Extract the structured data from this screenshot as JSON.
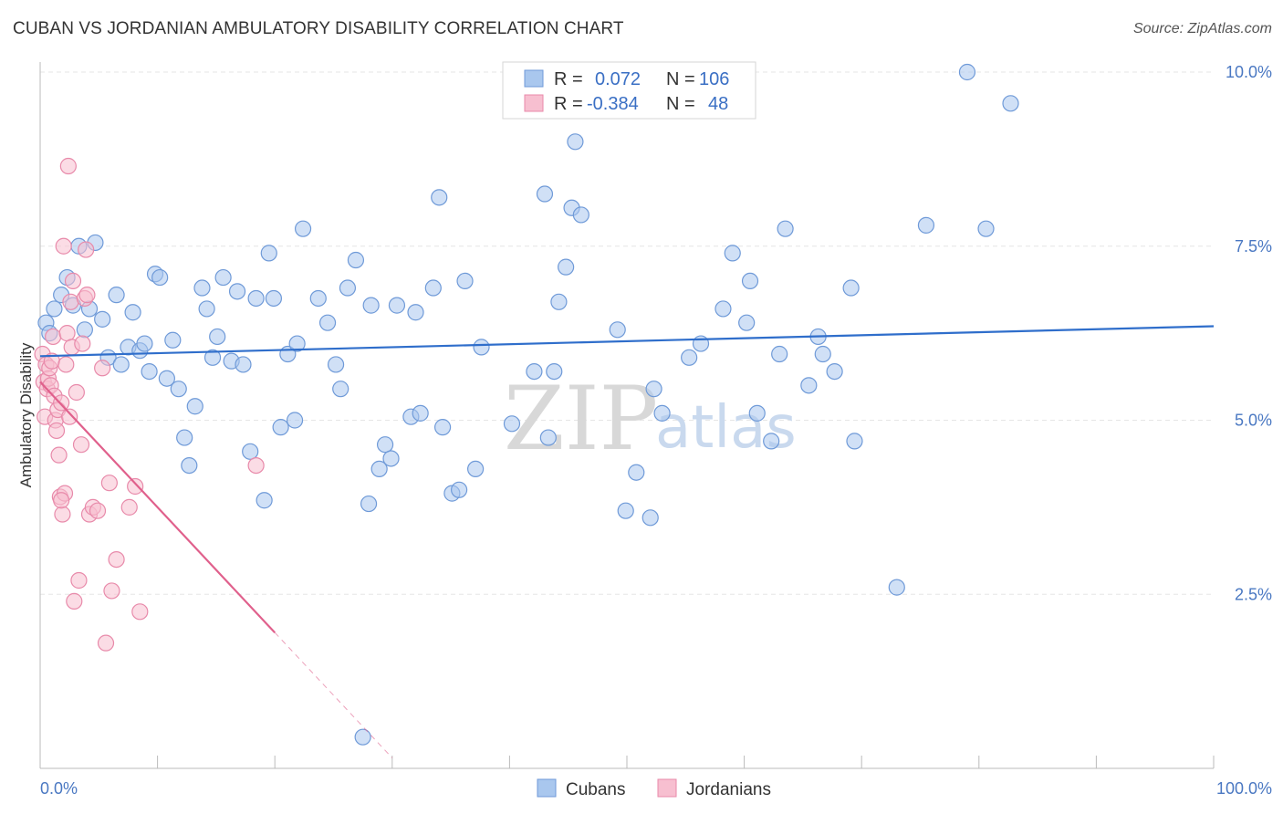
{
  "title": "CUBAN VS JORDANIAN AMBULATORY DISABILITY CORRELATION CHART",
  "source": "Source: ZipAtlas.com",
  "watermark": {
    "zip": "ZIP",
    "atlas": "atlas"
  },
  "colors": {
    "cuban_fill": "#a9c7ee",
    "cuban_stroke": "#6f9ad8",
    "cuban_line": "#2f6ecb",
    "jordan_fill": "#f7bfd0",
    "jordan_stroke": "#e88aaa",
    "jordan_line": "#e0608c",
    "grid": "#e6e6e6"
  },
  "legend": {
    "rows": [
      {
        "r_label": "R =",
        "r_value": "0.072",
        "n_label": "N =",
        "n_value": "106"
      },
      {
        "r_label": "R =",
        "r_value": "-0.384",
        "n_label": "N =",
        "n_value": "48"
      }
    ]
  },
  "chart_data": {
    "type": "scatter",
    "title": "CUBAN VS JORDANIAN AMBULATORY DISABILITY CORRELATION CHART",
    "xlabel": "",
    "ylabel": "Ambulatory Disability",
    "xlim": [
      0,
      100
    ],
    "ylim": [
      0,
      10.5
    ],
    "x_tick_labels": [
      "0.0%",
      "100.0%"
    ],
    "y_ticks": [
      2.5,
      5.0,
      7.5,
      10.0
    ],
    "y_tick_labels": [
      "2.5%",
      "5.0%",
      "7.5%",
      "10.0%"
    ],
    "legend_position": "top-center",
    "series": [
      {
        "name": "Cubans",
        "r": 0.072,
        "n": 106,
        "trend": {
          "x": [
            0,
            100
          ],
          "y": [
            5.92,
            6.35
          ]
        },
        "points": [
          [
            0.5,
            6.4
          ],
          [
            0.8,
            6.25
          ],
          [
            1.2,
            6.6
          ],
          [
            1.8,
            6.8
          ],
          [
            2.3,
            7.05
          ],
          [
            2.8,
            6.65
          ],
          [
            3.3,
            7.5
          ],
          [
            3.8,
            6.3
          ],
          [
            4.2,
            6.6
          ],
          [
            4.7,
            7.55
          ],
          [
            5.3,
            6.45
          ],
          [
            5.8,
            5.9
          ],
          [
            6.5,
            6.8
          ],
          [
            6.9,
            5.8
          ],
          [
            7.5,
            6.05
          ],
          [
            7.9,
            6.55
          ],
          [
            8.5,
            6.0
          ],
          [
            8.9,
            6.1
          ],
          [
            9.3,
            5.7
          ],
          [
            9.8,
            7.1
          ],
          [
            10.2,
            7.05
          ],
          [
            10.8,
            5.6
          ],
          [
            11.3,
            6.15
          ],
          [
            11.8,
            5.45
          ],
          [
            12.3,
            4.75
          ],
          [
            12.7,
            4.35
          ],
          [
            13.2,
            5.2
          ],
          [
            13.8,
            6.9
          ],
          [
            14.2,
            6.6
          ],
          [
            14.7,
            5.9
          ],
          [
            15.1,
            6.2
          ],
          [
            15.6,
            7.05
          ],
          [
            16.3,
            5.85
          ],
          [
            16.8,
            6.85
          ],
          [
            17.3,
            5.8
          ],
          [
            17.9,
            4.55
          ],
          [
            18.4,
            6.75
          ],
          [
            19.1,
            3.85
          ],
          [
            19.5,
            7.4
          ],
          [
            19.9,
            6.75
          ],
          [
            20.5,
            4.9
          ],
          [
            21.1,
            5.95
          ],
          [
            21.7,
            5.0
          ],
          [
            21.9,
            6.1
          ],
          [
            22.4,
            7.75
          ],
          [
            23.7,
            6.75
          ],
          [
            24.5,
            6.4
          ],
          [
            25.2,
            5.8
          ],
          [
            25.6,
            5.45
          ],
          [
            26.2,
            6.9
          ],
          [
            26.9,
            7.3
          ],
          [
            27.5,
            0.45
          ],
          [
            28.0,
            3.8
          ],
          [
            28.2,
            6.65
          ],
          [
            28.9,
            4.3
          ],
          [
            29.4,
            4.65
          ],
          [
            29.9,
            4.45
          ],
          [
            30.4,
            6.65
          ],
          [
            31.6,
            5.05
          ],
          [
            32.0,
            6.55
          ],
          [
            32.4,
            5.1
          ],
          [
            33.5,
            6.9
          ],
          [
            34.0,
            8.2
          ],
          [
            34.3,
            4.9
          ],
          [
            35.1,
            3.95
          ],
          [
            35.7,
            4.0
          ],
          [
            36.2,
            7.0
          ],
          [
            37.1,
            4.3
          ],
          [
            37.6,
            6.05
          ],
          [
            40.2,
            4.95
          ],
          [
            42.1,
            5.7
          ],
          [
            43.0,
            8.25
          ],
          [
            43.3,
            4.75
          ],
          [
            43.8,
            5.7
          ],
          [
            44.2,
            6.7
          ],
          [
            44.8,
            7.2
          ],
          [
            45.3,
            8.05
          ],
          [
            45.6,
            9.0
          ],
          [
            46.1,
            7.95
          ],
          [
            49.2,
            6.3
          ],
          [
            49.9,
            3.7
          ],
          [
            50.8,
            4.25
          ],
          [
            52.0,
            3.6
          ],
          [
            52.3,
            5.45
          ],
          [
            53.0,
            5.1
          ],
          [
            55.3,
            5.9
          ],
          [
            56.3,
            6.1
          ],
          [
            58.2,
            6.6
          ],
          [
            59.0,
            7.4
          ],
          [
            60.2,
            6.4
          ],
          [
            60.5,
            7.0
          ],
          [
            61.1,
            5.1
          ],
          [
            62.3,
            4.7
          ],
          [
            63.0,
            5.95
          ],
          [
            63.5,
            7.75
          ],
          [
            65.5,
            5.5
          ],
          [
            66.3,
            6.2
          ],
          [
            66.7,
            5.95
          ],
          [
            67.7,
            5.7
          ],
          [
            69.1,
            6.9
          ],
          [
            69.4,
            4.7
          ],
          [
            75.5,
            7.8
          ],
          [
            79.0,
            10.0
          ],
          [
            80.6,
            7.75
          ],
          [
            82.7,
            9.55
          ],
          [
            73.0,
            2.6
          ]
        ]
      },
      {
        "name": "Jordanians",
        "r": -0.384,
        "n": 48,
        "trend": {
          "x": [
            0,
            20
          ],
          "y": [
            5.55,
            1.95
          ]
        },
        "trend_dashed_extension": {
          "x": [
            20,
            30
          ],
          "y": [
            1.95,
            0.15
          ]
        },
        "points": [
          [
            0.2,
            5.95
          ],
          [
            0.3,
            5.55
          ],
          [
            0.4,
            5.05
          ],
          [
            0.5,
            5.8
          ],
          [
            0.6,
            5.45
          ],
          [
            0.7,
            5.6
          ],
          [
            0.8,
            5.75
          ],
          [
            0.9,
            5.5
          ],
          [
            1.0,
            5.85
          ],
          [
            1.1,
            6.2
          ],
          [
            1.2,
            5.35
          ],
          [
            1.3,
            5.0
          ],
          [
            1.4,
            4.85
          ],
          [
            1.5,
            5.15
          ],
          [
            1.6,
            4.5
          ],
          [
            1.7,
            3.9
          ],
          [
            1.8,
            5.25
          ],
          [
            1.9,
            3.65
          ],
          [
            2.0,
            7.5
          ],
          [
            2.1,
            3.95
          ],
          [
            2.2,
            5.8
          ],
          [
            2.3,
            6.25
          ],
          [
            2.4,
            8.65
          ],
          [
            2.5,
            5.05
          ],
          [
            2.6,
            6.7
          ],
          [
            2.7,
            6.05
          ],
          [
            2.8,
            7.0
          ],
          [
            2.9,
            2.4
          ],
          [
            3.1,
            5.4
          ],
          [
            3.3,
            2.7
          ],
          [
            3.5,
            4.65
          ],
          [
            3.6,
            6.1
          ],
          [
            3.8,
            6.75
          ],
          [
            4.0,
            6.8
          ],
          [
            4.2,
            3.65
          ],
          [
            4.5,
            3.75
          ],
          [
            4.9,
            3.7
          ],
          [
            5.3,
            5.75
          ],
          [
            5.6,
            1.8
          ],
          [
            5.9,
            4.1
          ],
          [
            6.1,
            2.55
          ],
          [
            6.5,
            3.0
          ],
          [
            7.6,
            3.75
          ],
          [
            8.1,
            4.05
          ],
          [
            8.5,
            2.25
          ],
          [
            18.4,
            4.35
          ],
          [
            1.8,
            3.85
          ],
          [
            3.9,
            7.45
          ]
        ]
      }
    ]
  }
}
